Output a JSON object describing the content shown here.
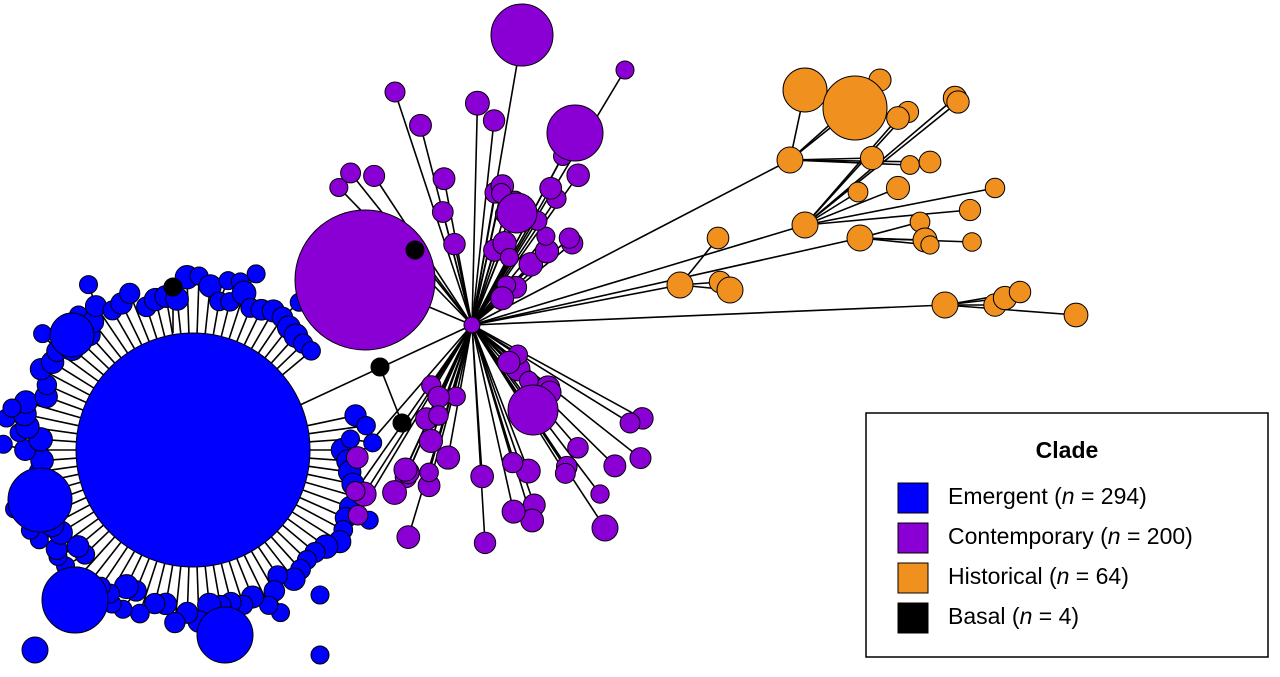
{
  "legend": {
    "title": "Clade",
    "entries": [
      {
        "color": "#0000ff",
        "label": [
          "Emergent (",
          "n",
          " = 294)"
        ]
      },
      {
        "color": "#8a00d4",
        "label": [
          "Contemporary (",
          "n",
          " = 200)"
        ]
      },
      {
        "color": "#f0901e",
        "label": [
          "Historical (",
          "n",
          " = 64)"
        ]
      },
      {
        "color": "#000000",
        "label": [
          "Basal (",
          "n",
          " = 4)"
        ]
      }
    ]
  }
}
